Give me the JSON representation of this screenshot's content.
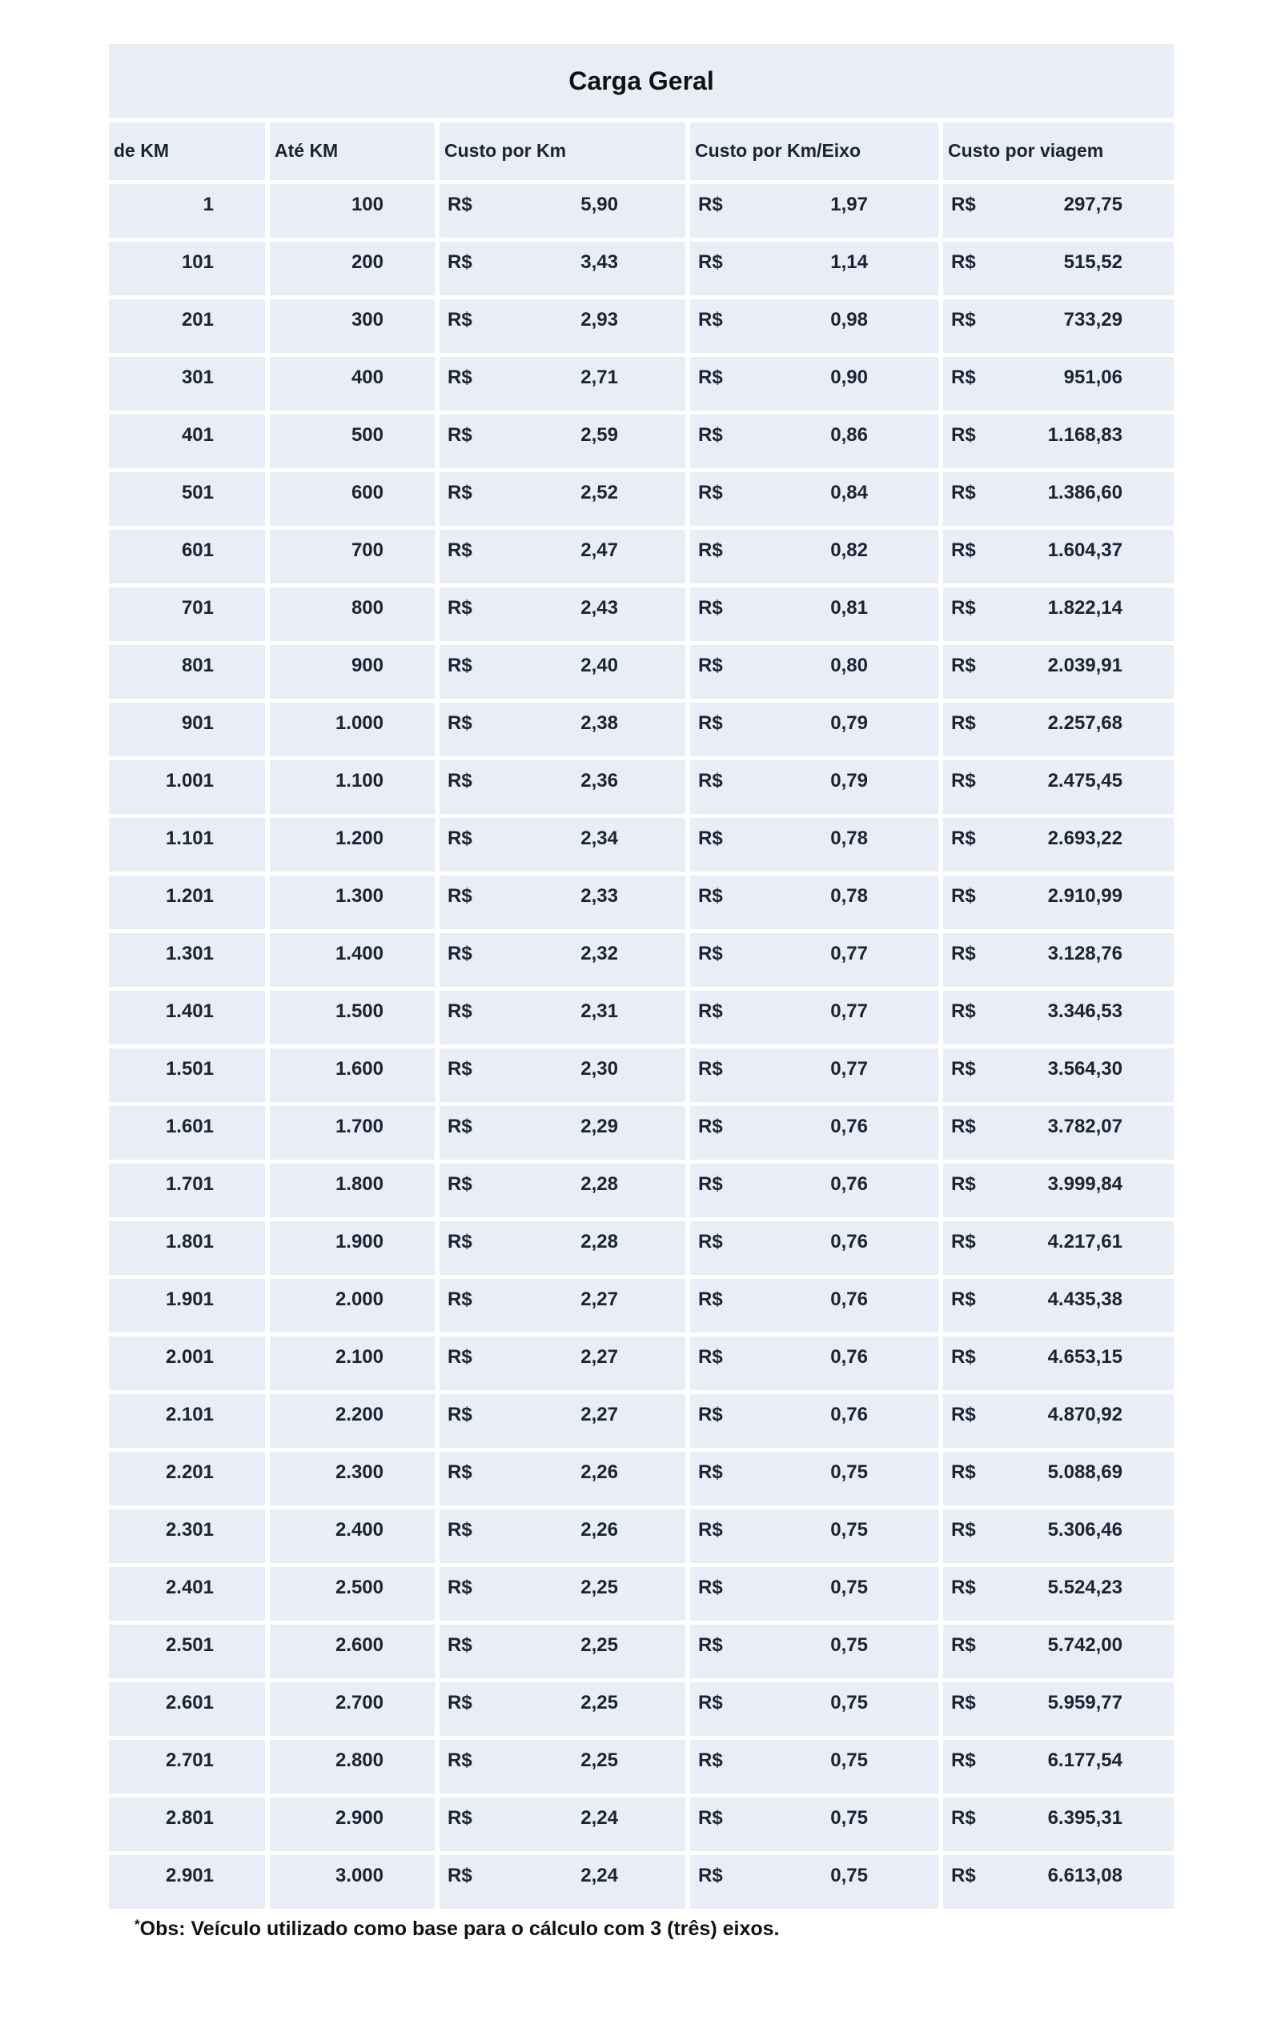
{
  "title": "Carga Geral",
  "currency_symbol": "R$",
  "columns": [
    "de KM",
    "Até KM",
    "Custo por Km",
    "Custo por Km/Eixo",
    "Custo por viagem"
  ],
  "rows": [
    {
      "from": "1",
      "to": "100",
      "per_km": "5,90",
      "per_km_axle": "1,97",
      "per_trip": "297,75"
    },
    {
      "from": "101",
      "to": "200",
      "per_km": "3,43",
      "per_km_axle": "1,14",
      "per_trip": "515,52"
    },
    {
      "from": "201",
      "to": "300",
      "per_km": "2,93",
      "per_km_axle": "0,98",
      "per_trip": "733,29"
    },
    {
      "from": "301",
      "to": "400",
      "per_km": "2,71",
      "per_km_axle": "0,90",
      "per_trip": "951,06"
    },
    {
      "from": "401",
      "to": "500",
      "per_km": "2,59",
      "per_km_axle": "0,86",
      "per_trip": "1.168,83"
    },
    {
      "from": "501",
      "to": "600",
      "per_km": "2,52",
      "per_km_axle": "0,84",
      "per_trip": "1.386,60"
    },
    {
      "from": "601",
      "to": "700",
      "per_km": "2,47",
      "per_km_axle": "0,82",
      "per_trip": "1.604,37"
    },
    {
      "from": "701",
      "to": "800",
      "per_km": "2,43",
      "per_km_axle": "0,81",
      "per_trip": "1.822,14"
    },
    {
      "from": "801",
      "to": "900",
      "per_km": "2,40",
      "per_km_axle": "0,80",
      "per_trip": "2.039,91"
    },
    {
      "from": "901",
      "to": "1.000",
      "per_km": "2,38",
      "per_km_axle": "0,79",
      "per_trip": "2.257,68"
    },
    {
      "from": "1.001",
      "to": "1.100",
      "per_km": "2,36",
      "per_km_axle": "0,79",
      "per_trip": "2.475,45"
    },
    {
      "from": "1.101",
      "to": "1.200",
      "per_km": "2,34",
      "per_km_axle": "0,78",
      "per_trip": "2.693,22"
    },
    {
      "from": "1.201",
      "to": "1.300",
      "per_km": "2,33",
      "per_km_axle": "0,78",
      "per_trip": "2.910,99"
    },
    {
      "from": "1.301",
      "to": "1.400",
      "per_km": "2,32",
      "per_km_axle": "0,77",
      "per_trip": "3.128,76"
    },
    {
      "from": "1.401",
      "to": "1.500",
      "per_km": "2,31",
      "per_km_axle": "0,77",
      "per_trip": "3.346,53"
    },
    {
      "from": "1.501",
      "to": "1.600",
      "per_km": "2,30",
      "per_km_axle": "0,77",
      "per_trip": "3.564,30"
    },
    {
      "from": "1.601",
      "to": "1.700",
      "per_km": "2,29",
      "per_km_axle": "0,76",
      "per_trip": "3.782,07"
    },
    {
      "from": "1.701",
      "to": "1.800",
      "per_km": "2,28",
      "per_km_axle": "0,76",
      "per_trip": "3.999,84"
    },
    {
      "from": "1.801",
      "to": "1.900",
      "per_km": "2,28",
      "per_km_axle": "0,76",
      "per_trip": "4.217,61"
    },
    {
      "from": "1.901",
      "to": "2.000",
      "per_km": "2,27",
      "per_km_axle": "0,76",
      "per_trip": "4.435,38"
    },
    {
      "from": "2.001",
      "to": "2.100",
      "per_km": "2,27",
      "per_km_axle": "0,76",
      "per_trip": "4.653,15"
    },
    {
      "from": "2.101",
      "to": "2.200",
      "per_km": "2,27",
      "per_km_axle": "0,76",
      "per_trip": "4.870,92"
    },
    {
      "from": "2.201",
      "to": "2.300",
      "per_km": "2,26",
      "per_km_axle": "0,75",
      "per_trip": "5.088,69"
    },
    {
      "from": "2.301",
      "to": "2.400",
      "per_km": "2,26",
      "per_km_axle": "0,75",
      "per_trip": "5.306,46"
    },
    {
      "from": "2.401",
      "to": "2.500",
      "per_km": "2,25",
      "per_km_axle": "0,75",
      "per_trip": "5.524,23"
    },
    {
      "from": "2.501",
      "to": "2.600",
      "per_km": "2,25",
      "per_km_axle": "0,75",
      "per_trip": "5.742,00"
    },
    {
      "from": "2.601",
      "to": "2.700",
      "per_km": "2,25",
      "per_km_axle": "0,75",
      "per_trip": "5.959,77"
    },
    {
      "from": "2.701",
      "to": "2.800",
      "per_km": "2,25",
      "per_km_axle": "0,75",
      "per_trip": "6.177,54"
    },
    {
      "from": "2.801",
      "to": "2.900",
      "per_km": "2,24",
      "per_km_axle": "0,75",
      "per_trip": "6.395,31"
    },
    {
      "from": "2.901",
      "to": "3.000",
      "per_km": "2,24",
      "per_km_axle": "0,75",
      "per_trip": "6.613,08"
    }
  ],
  "footnote": {
    "asterisk": "*",
    "text": "Obs: Veículo utilizado como base para o cálculo com 3 (três) eixos."
  },
  "colors": {
    "cell_bg": "#e9edf5",
    "text": "#1c2433",
    "title_text": "#111111",
    "page_bg": "#ffffff"
  }
}
